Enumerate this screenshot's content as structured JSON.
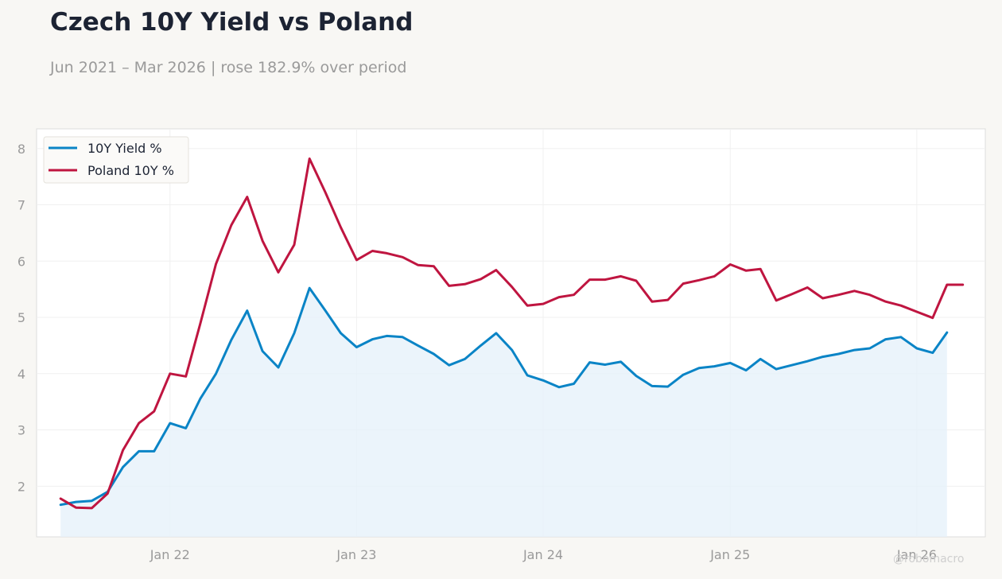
{
  "title": "Czech 10Y Yield vs Poland",
  "subtitle": "Jun 2021 – Mar 2026 | rose 182.9% over period",
  "watermark": "@robomacro",
  "colors": {
    "series_1": "#0a84c6",
    "series_2": "#bf1540",
    "fill": "#e6f1fa",
    "background": "#f8f7f4",
    "plot_bg": "#ffffff"
  },
  "chart_data": {
    "type": "line",
    "title": "Czech 10Y Yield vs Poland",
    "subtitle": "Jun 2021 – Mar 2026 | rose 182.9% over period",
    "xlabel": "",
    "ylabel": "",
    "grid": true,
    "legend_position": "top-left",
    "x_range": [
      "2021-04-15",
      "2026-05-15"
    ],
    "ylim": [
      1.1,
      8.35
    ],
    "y_ticks": [
      2,
      3,
      4,
      5,
      6,
      7,
      8
    ],
    "x_ticks": [
      {
        "label": "Jan 22",
        "date": "2022-01-01"
      },
      {
        "label": "Jan 23",
        "date": "2023-01-01"
      },
      {
        "label": "Jan 24",
        "date": "2024-01-01"
      },
      {
        "label": "Jan 25",
        "date": "2025-01-01"
      },
      {
        "label": "Jan 26",
        "date": "2026-01-01"
      }
    ],
    "series": [
      {
        "name": "10Y Yield %",
        "color": "#0a84c6",
        "fill_under": true,
        "points": [
          [
            "2021-06-01",
            1.67
          ],
          [
            "2021-07-01",
            1.72
          ],
          [
            "2021-08-01",
            1.74
          ],
          [
            "2021-09-01",
            1.9
          ],
          [
            "2021-10-01",
            2.34
          ],
          [
            "2021-11-01",
            2.62
          ],
          [
            "2021-12-01",
            2.62
          ],
          [
            "2022-01-01",
            3.12
          ],
          [
            "2022-02-01",
            3.03
          ],
          [
            "2022-03-01",
            3.55
          ],
          [
            "2022-04-01",
            4.0
          ],
          [
            "2022-05-01",
            4.6
          ],
          [
            "2022-06-01",
            5.12
          ],
          [
            "2022-07-01",
            4.4
          ],
          [
            "2022-08-01",
            4.11
          ],
          [
            "2022-09-01",
            4.72
          ],
          [
            "2022-10-01",
            5.52
          ],
          [
            "2022-11-01",
            5.12
          ],
          [
            "2022-12-01",
            4.72
          ],
          [
            "2023-01-01",
            4.47
          ],
          [
            "2023-02-01",
            4.61
          ],
          [
            "2023-03-01",
            4.67
          ],
          [
            "2023-04-01",
            4.65
          ],
          [
            "2023-05-01",
            4.5
          ],
          [
            "2023-06-01",
            4.35
          ],
          [
            "2023-07-01",
            4.15
          ],
          [
            "2023-08-01",
            4.26
          ],
          [
            "2023-09-01",
            4.5
          ],
          [
            "2023-10-01",
            4.72
          ],
          [
            "2023-11-01",
            4.42
          ],
          [
            "2023-12-01",
            3.97
          ],
          [
            "2024-01-01",
            3.88
          ],
          [
            "2024-02-01",
            3.76
          ],
          [
            "2024-03-01",
            3.82
          ],
          [
            "2024-04-01",
            4.2
          ],
          [
            "2024-05-01",
            4.16
          ],
          [
            "2024-06-01",
            4.21
          ],
          [
            "2024-07-01",
            3.96
          ],
          [
            "2024-08-01",
            3.78
          ],
          [
            "2024-09-01",
            3.77
          ],
          [
            "2024-10-01",
            3.98
          ],
          [
            "2024-11-01",
            4.1
          ],
          [
            "2024-12-01",
            4.13
          ],
          [
            "2025-01-01",
            4.19
          ],
          [
            "2025-02-01",
            4.06
          ],
          [
            "2025-03-01",
            4.26
          ],
          [
            "2025-04-01",
            4.08
          ],
          [
            "2025-05-01",
            4.15
          ],
          [
            "2025-06-01",
            4.22
          ],
          [
            "2025-07-01",
            4.3
          ],
          [
            "2025-08-01",
            4.35
          ],
          [
            "2025-09-01",
            4.42
          ],
          [
            "2025-10-01",
            4.45
          ],
          [
            "2025-11-01",
            4.61
          ],
          [
            "2025-12-01",
            4.65
          ],
          [
            "2026-01-01",
            4.45
          ],
          [
            "2026-02-01",
            4.37
          ],
          [
            "2026-03-01",
            4.73
          ]
        ]
      },
      {
        "name": "Poland 10Y %",
        "color": "#bf1540",
        "fill_under": false,
        "points": [
          [
            "2021-06-01",
            1.78
          ],
          [
            "2021-07-01",
            1.62
          ],
          [
            "2021-08-01",
            1.61
          ],
          [
            "2021-09-01",
            1.87
          ],
          [
            "2021-10-01",
            2.64
          ],
          [
            "2021-11-01",
            3.12
          ],
          [
            "2021-12-01",
            3.33
          ],
          [
            "2022-01-01",
            4.0
          ],
          [
            "2022-02-01",
            3.95
          ],
          [
            "2022-03-01",
            4.88
          ],
          [
            "2022-04-01",
            5.95
          ],
          [
            "2022-05-01",
            6.64
          ],
          [
            "2022-06-01",
            7.14
          ],
          [
            "2022-07-01",
            6.36
          ],
          [
            "2022-08-01",
            5.8
          ],
          [
            "2022-09-01",
            6.29
          ],
          [
            "2022-10-01",
            7.82
          ],
          [
            "2022-11-01",
            7.22
          ],
          [
            "2022-12-01",
            6.6
          ],
          [
            "2023-01-01",
            6.02
          ],
          [
            "2023-02-01",
            6.18
          ],
          [
            "2023-03-01",
            6.14
          ],
          [
            "2023-04-01",
            6.07
          ],
          [
            "2023-05-01",
            5.93
          ],
          [
            "2023-06-01",
            5.91
          ],
          [
            "2023-07-01",
            5.56
          ],
          [
            "2023-08-01",
            5.59
          ],
          [
            "2023-09-01",
            5.68
          ],
          [
            "2023-10-01",
            5.84
          ],
          [
            "2023-11-01",
            5.54
          ],
          [
            "2023-12-01",
            5.21
          ],
          [
            "2024-01-01",
            5.24
          ],
          [
            "2024-02-01",
            5.36
          ],
          [
            "2024-03-01",
            5.4
          ],
          [
            "2024-04-01",
            5.67
          ],
          [
            "2024-05-01",
            5.67
          ],
          [
            "2024-06-01",
            5.73
          ],
          [
            "2024-07-01",
            5.65
          ],
          [
            "2024-08-01",
            5.28
          ],
          [
            "2024-09-01",
            5.31
          ],
          [
            "2024-10-01",
            5.6
          ],
          [
            "2024-11-01",
            5.66
          ],
          [
            "2024-12-01",
            5.73
          ],
          [
            "2025-01-01",
            5.94
          ],
          [
            "2025-02-01",
            5.83
          ],
          [
            "2025-03-01",
            5.86
          ],
          [
            "2025-04-01",
            5.3
          ],
          [
            "2025-05-01",
            5.41
          ],
          [
            "2025-06-01",
            5.53
          ],
          [
            "2025-07-01",
            5.34
          ],
          [
            "2025-08-01",
            5.4
          ],
          [
            "2025-09-01",
            5.47
          ],
          [
            "2025-10-01",
            5.4
          ],
          [
            "2025-11-01",
            5.28
          ],
          [
            "2025-12-01",
            5.21
          ],
          [
            "2026-01-01",
            5.1
          ],
          [
            "2026-02-01",
            4.99
          ],
          [
            "2026-03-01",
            5.58
          ],
          [
            "2026-04-01",
            5.58
          ]
        ]
      }
    ]
  }
}
